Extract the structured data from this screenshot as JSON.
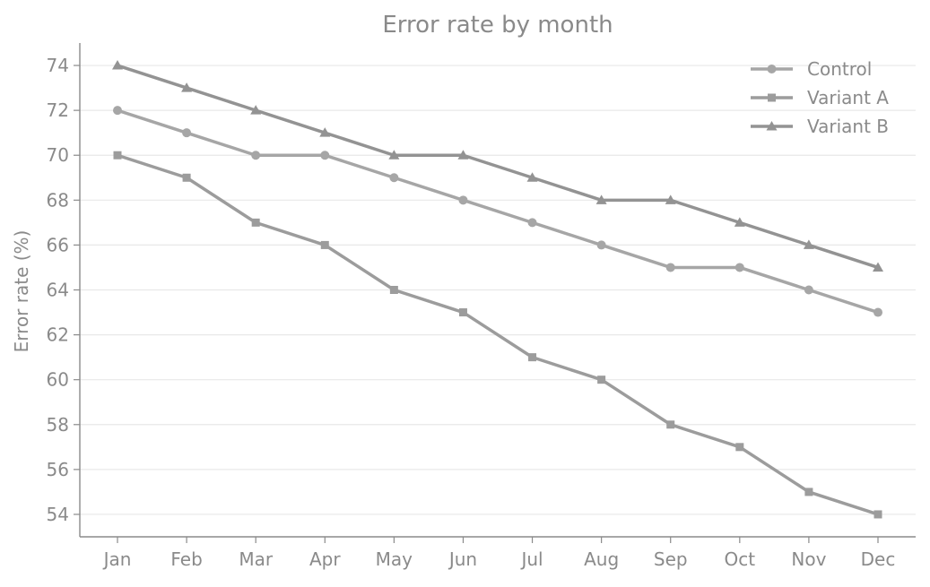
{
  "chart_data": {
    "type": "line",
    "title": "Error rate by month",
    "xlabel": "",
    "ylabel": "Error rate (%)",
    "categories": [
      "Jan",
      "Feb",
      "Mar",
      "Apr",
      "May",
      "Jun",
      "Jul",
      "Aug",
      "Sep",
      "Oct",
      "Nov",
      "Dec"
    ],
    "ylim": [
      53,
      75
    ],
    "yticks": [
      54,
      56,
      58,
      60,
      62,
      64,
      66,
      68,
      70,
      72,
      74
    ],
    "grid": "horizontal",
    "legend_position": "top-right",
    "series": [
      {
        "name": "Control",
        "marker": "circle",
        "color": "#a6a6a6",
        "values": [
          72,
          71,
          70,
          70,
          69,
          68,
          67,
          66,
          65,
          65,
          64,
          63
        ]
      },
      {
        "name": "Variant A",
        "marker": "square",
        "color": "#9c9c9c",
        "values": [
          70,
          69,
          67,
          66,
          64,
          63,
          61,
          60,
          58,
          57,
          55,
          54
        ]
      },
      {
        "name": "Variant B",
        "marker": "triangle",
        "color": "#939393",
        "values": [
          74,
          73,
          72,
          71,
          70,
          70,
          69,
          68,
          68,
          67,
          66,
          65
        ]
      }
    ]
  }
}
